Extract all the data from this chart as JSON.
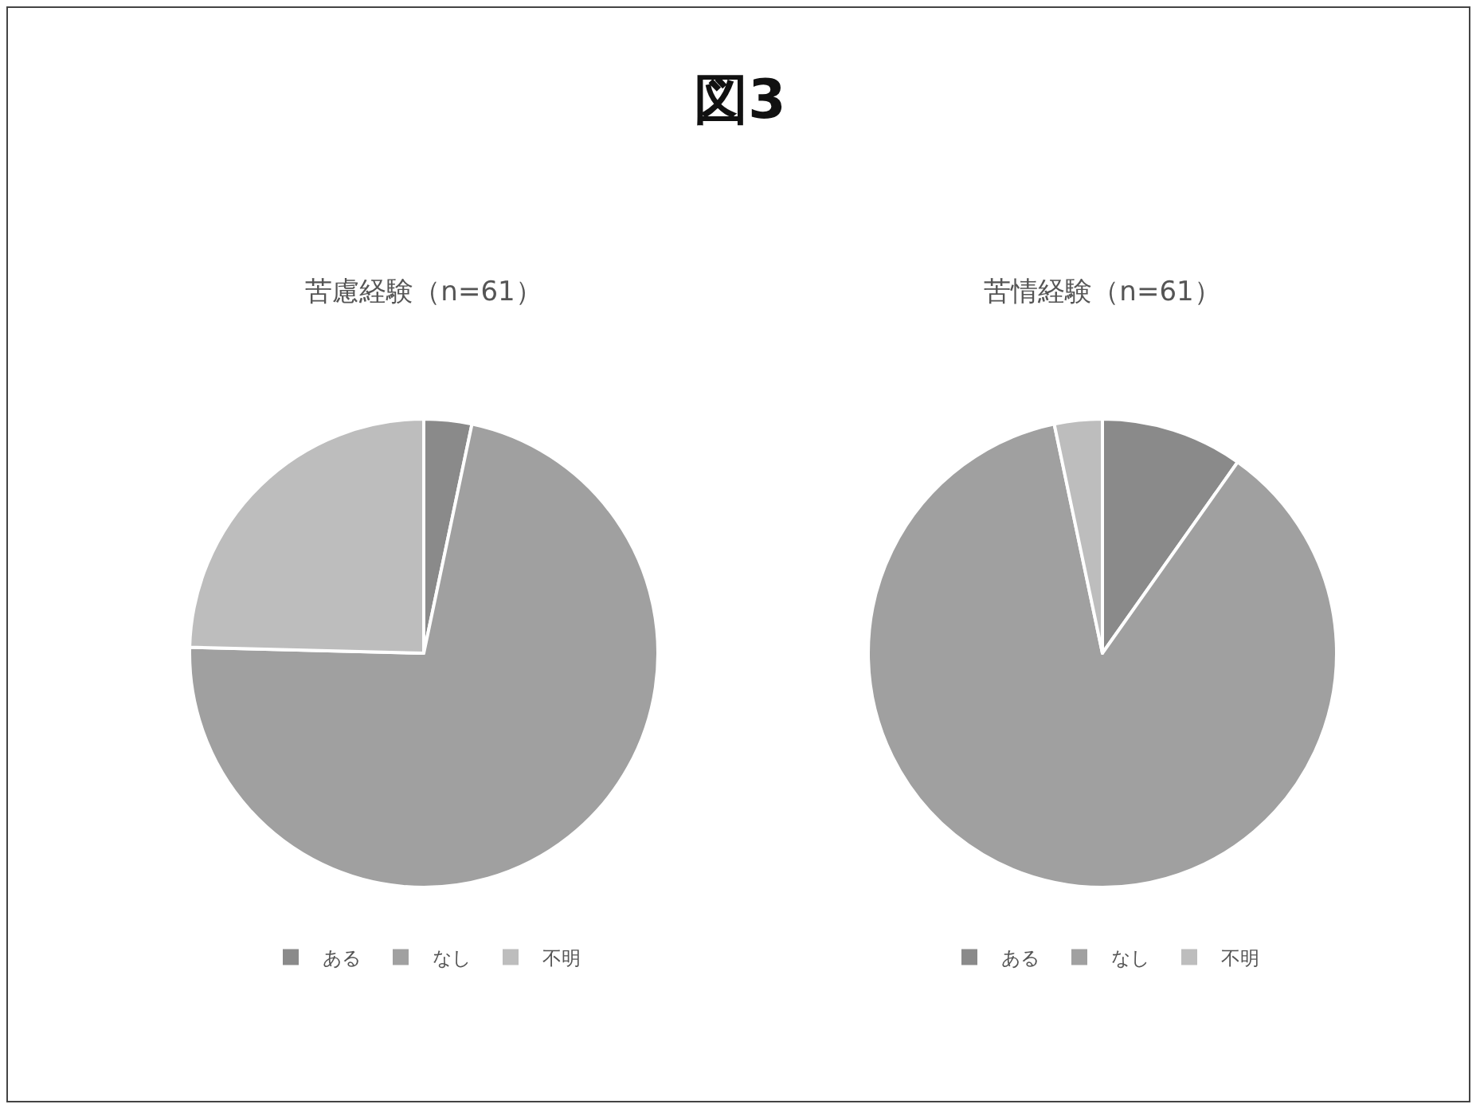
{
  "chart_data": [
    {
      "type": "pie",
      "title": "苦慮経験（n=61）",
      "annotations": [
        "図3"
      ],
      "categories": [
        "ある",
        "なし",
        "不明"
      ],
      "values": [
        3.3,
        72.1,
        24.6
      ],
      "colors": [
        "#8a8a8a",
        "#a0a0a0",
        "#bdbdbd"
      ],
      "legend": "bottom"
    },
    {
      "type": "pie",
      "title": "苦情経験（n=61）",
      "categories": [
        "ある",
        "なし",
        "不明"
      ],
      "values": [
        9.8,
        86.9,
        3.3
      ],
      "colors": [
        "#8a8a8a",
        "#a0a0a0",
        "#bdbdbd"
      ],
      "legend": "bottom"
    }
  ]
}
